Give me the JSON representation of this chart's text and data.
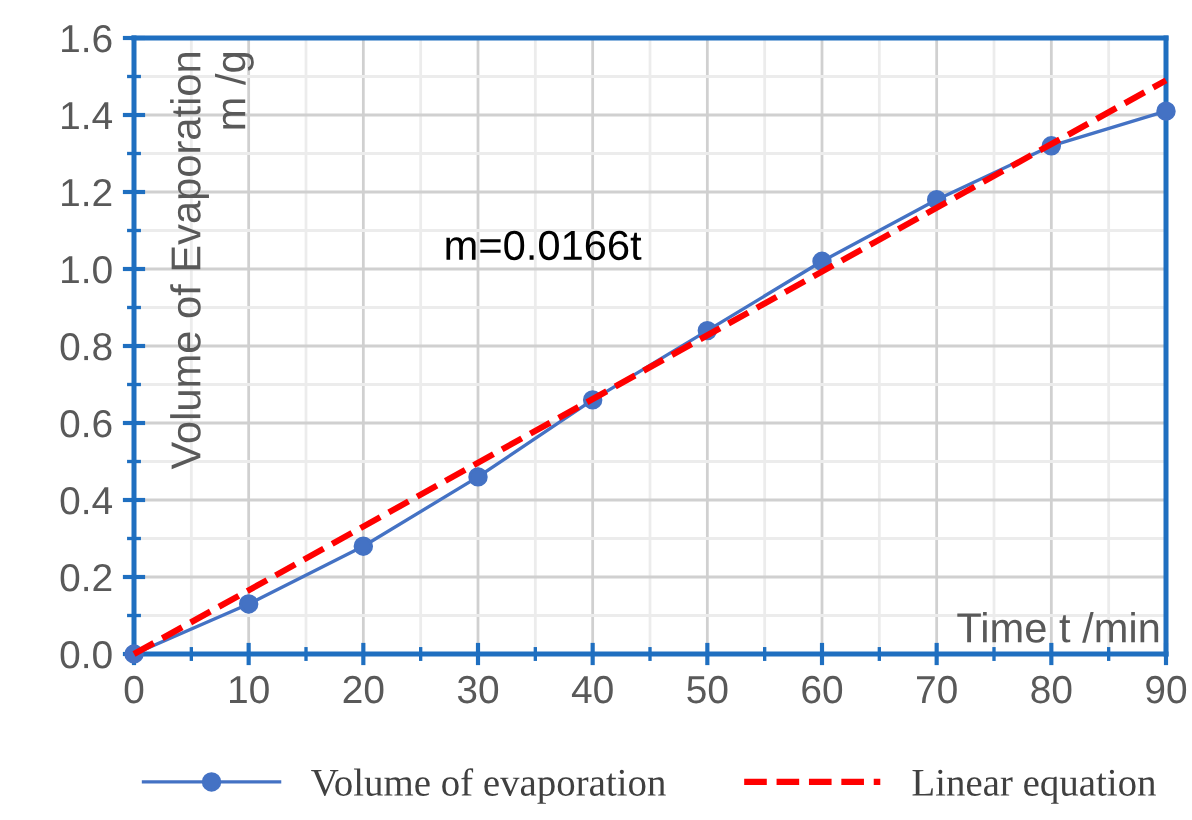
{
  "chart_data": {
    "type": "line",
    "ylabel": "Volume of Evaporation\nm /g",
    "xlabel": "Time t /min",
    "annotations": [
      "m=0.0166t"
    ],
    "series": [
      {
        "name": "Volume of evaporation",
        "color": "#4472c4",
        "x": [
          0,
          10,
          20,
          30,
          40,
          50,
          60,
          70,
          80,
          90
        ],
        "values": [
          0,
          0.13,
          0.28,
          0.46,
          0.66,
          0.84,
          1.02,
          1.18,
          1.32,
          1.41
        ],
        "marker": "circle",
        "line_style": "solid"
      },
      {
        "name": "Linear equation",
        "color": "#ff0000",
        "x": [
          0,
          90
        ],
        "values": [
          0,
          1.49
        ],
        "marker": "none",
        "line_style": "dashed"
      }
    ],
    "xlim": [
      0,
      90
    ],
    "xticks": [
      0,
      10,
      20,
      30,
      40,
      50,
      60,
      70,
      80,
      90
    ],
    "ylim": [
      0,
      1.6
    ],
    "yticks": [
      {
        "value": 0,
        "label": "0.0"
      },
      0.2,
      0.4,
      0.6,
      0.8,
      {
        "value": 1,
        "label": "1.0"
      },
      1.2,
      1.4,
      1.6
    ],
    "grid": true,
    "legend": "bottom"
  }
}
